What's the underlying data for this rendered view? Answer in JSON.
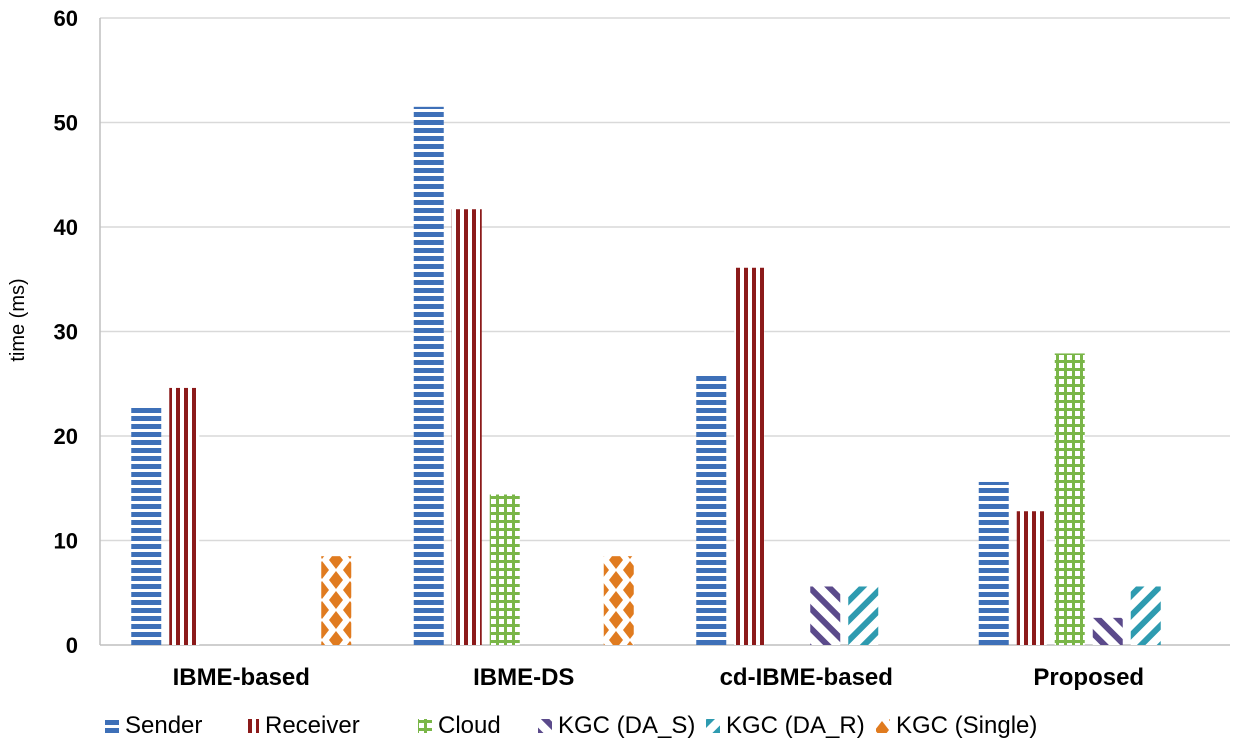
{
  "chart_data": {
    "type": "bar",
    "ylabel": "time (ms)",
    "ylim": [
      0,
      60
    ],
    "yticks": [
      0,
      10,
      20,
      30,
      40,
      50,
      60
    ],
    "grid": true,
    "legend_position": "bottom",
    "categories": [
      "IBME-based",
      "IBME-DS",
      "cd-IBME-based",
      "Proposed"
    ],
    "series": [
      {
        "name": "Sender",
        "values": [
          22.8,
          51.5,
          25.8,
          15.6
        ],
        "color": "#3E70B8",
        "pattern": "horizontal-lines"
      },
      {
        "name": "Receiver",
        "values": [
          24.6,
          41.7,
          36.1,
          12.8
        ],
        "color": "#8B1A1A",
        "pattern": "vertical-lines"
      },
      {
        "name": "Cloud",
        "values": [
          0,
          14.4,
          0,
          27.9
        ],
        "color": "#7AB648",
        "pattern": "grid"
      },
      {
        "name": "KGC (DA_S)",
        "values": [
          0,
          0,
          5.6,
          2.6
        ],
        "color": "#5B4A8B",
        "pattern": "diagonal-back"
      },
      {
        "name": "KGC (DA_R)",
        "values": [
          0,
          0,
          5.6,
          5.6
        ],
        "color": "#2E9BB0",
        "pattern": "diagonal-forward"
      },
      {
        "name": "KGC (Single)",
        "values": [
          8.5,
          8.5,
          0,
          0
        ],
        "color": "#E07B1F",
        "pattern": "diamonds"
      }
    ]
  }
}
